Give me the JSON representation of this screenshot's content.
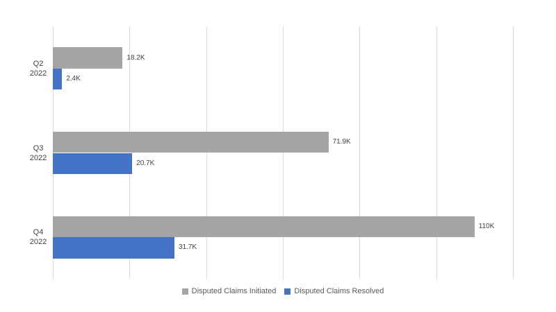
{
  "chart_data": {
    "type": "bar",
    "orientation": "horizontal",
    "title": "",
    "xlabel": "",
    "ylabel": "",
    "categories": [
      "Q2 2022",
      "Q3 2022",
      "Q4 2022"
    ],
    "series": [
      {
        "name": "Disputed Claims Initiated",
        "color": "#a5a5a5",
        "values": [
          18200,
          71900,
          110000
        ],
        "labels": [
          "18.2K",
          "71.9K",
          "110K"
        ]
      },
      {
        "name": "Disputed Claims Resolved",
        "color": "#4472c4",
        "values": [
          2400,
          20700,
          31700
        ],
        "labels": [
          "2.4K",
          "20.7K",
          "31.7K"
        ]
      }
    ],
    "xlim": [
      0,
      120000
    ],
    "grid_interval": 20000,
    "grid": true,
    "legend_position": "bottom",
    "colors": {
      "gridline": "#dcdcdc",
      "value_label": "#404040",
      "category_label": "#404040",
      "legend_text": "#595959",
      "background": "#ffffff"
    }
  }
}
